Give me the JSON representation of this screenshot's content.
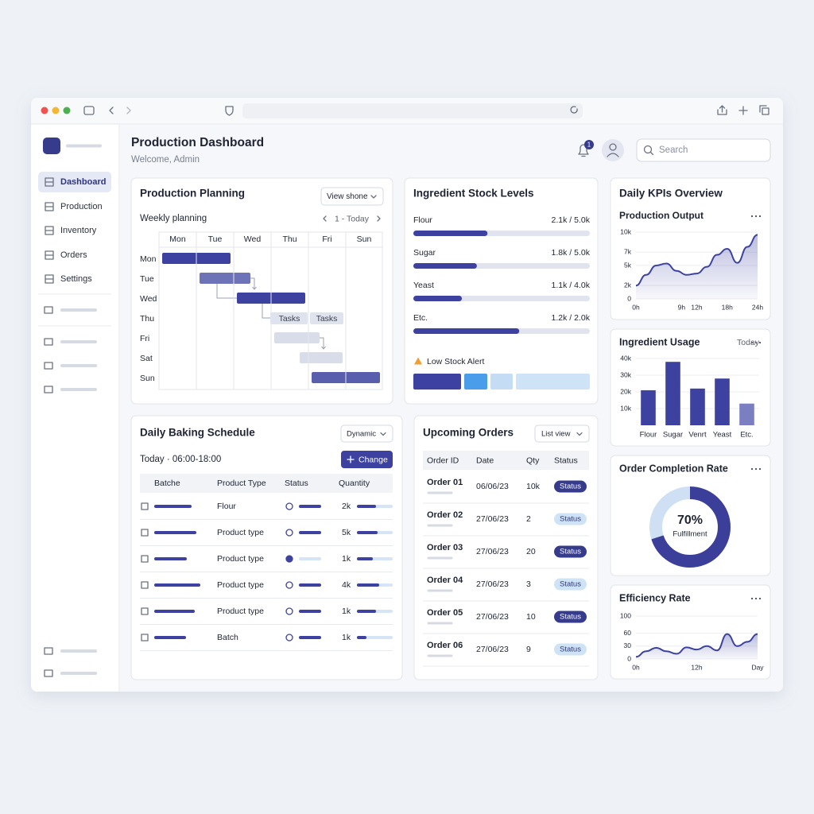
{
  "header": {
    "title": "Production Dashboard",
    "subtitle": "Welcome, Admin",
    "notifications": 1,
    "search": "Search"
  },
  "sidebar": {
    "nav": [
      "Dashboard",
      "Production",
      "Inventory",
      "Orders",
      "Settings"
    ]
  },
  "planning": {
    "title": "Production Planning",
    "view": "View shone",
    "subtitle": "Weekly planning",
    "range": "1 - Today",
    "columns": [
      "Mon",
      "Tue",
      "Wed",
      "Thu",
      "Fri",
      "Sun"
    ],
    "rows": [
      "Mon",
      "Tue",
      "Wed",
      "Thu",
      "Fri",
      "Sat",
      "Sun"
    ],
    "tasks": [
      "Tasks",
      "Tasks"
    ]
  },
  "stock": {
    "title": "Ingredient Stock Levels",
    "items": [
      {
        "name": "Flour",
        "label": "2.1k / 5.0k",
        "level": 2100,
        "capacity": 5000
      },
      {
        "name": "Sugar",
        "label": "1.8k / 5.0k",
        "level": 1800,
        "capacity": 5000
      },
      {
        "name": "Yeast",
        "label": "1.1k / 4.0k",
        "level": 1100,
        "capacity": 4000
      },
      {
        "name": "Etc.",
        "label": "1.2k / 2.0k",
        "level": 1200,
        "capacity": 2000
      }
    ],
    "alert": "Low Stock Alert"
  },
  "kpis": {
    "title": "Daily KPIs Overview"
  },
  "chart_data": [
    {
      "type": "line",
      "title": "Production Output",
      "color": "#3d42a0",
      "x": [
        0,
        2,
        4,
        6,
        8,
        10,
        12,
        14,
        16,
        18,
        20,
        22,
        24
      ],
      "values": [
        2000,
        3600,
        5000,
        5300,
        4200,
        3600,
        3800,
        4800,
        6600,
        7500,
        5400,
        7800,
        9600
      ],
      "xlim": [
        0,
        24
      ],
      "xticks": [
        {
          "value": 0,
          "label": "0h"
        },
        {
          "value": 9,
          "label": "9h"
        },
        {
          "value": 12,
          "label": "12h"
        },
        {
          "value": 18,
          "label": "18h"
        },
        {
          "value": 24,
          "label": "24h"
        }
      ],
      "ylim": [
        0,
        10000
      ],
      "yticks": [
        0,
        {
          "value": 2000,
          "label": "2k"
        },
        {
          "value": 5000,
          "label": "5k"
        },
        {
          "value": 7000,
          "label": "7k"
        },
        {
          "value": 10000,
          "label": "10k"
        }
      ],
      "grid": true
    },
    {
      "type": "bar",
      "title": "Ingredient Usage",
      "subtitle": "Today",
      "categories": [
        "Flour",
        "Sugar",
        "Venrt",
        "Yeast",
        "Etc."
      ],
      "values": [
        21000,
        38000,
        22000,
        28000,
        13000
      ],
      "colors": [
        "#3d42a0",
        "#3d42a0",
        "#3d42a0",
        "#3d42a0",
        "#7b7fc2"
      ],
      "ylim": [
        0,
        40000
      ],
      "yticks": [
        {
          "value": 10000,
          "label": "10k"
        },
        {
          "value": 20000,
          "label": "20k"
        },
        {
          "value": 30000,
          "label": "30k"
        },
        {
          "value": 40000,
          "label": "40k"
        }
      ],
      "grid": true
    },
    {
      "type": "donut",
      "title": "Order Completion Rate",
      "values": [
        70
      ],
      "value_labels": [
        "70%"
      ],
      "label": "Fulfillment",
      "color": "#3b3f9a",
      "track_color": "#cfe0f5",
      "max": 100
    },
    {
      "type": "line",
      "title": "Efficiency Rate",
      "color": "#3d42a0",
      "x": [
        0,
        2,
        4,
        6,
        8,
        10,
        12,
        14,
        16,
        18,
        20,
        22,
        24
      ],
      "values": [
        5,
        18,
        26,
        18,
        12,
        27,
        22,
        30,
        20,
        58,
        30,
        40,
        58
      ],
      "xlim": [
        0,
        24
      ],
      "xticks": [
        {
          "value": 0,
          "label": "0h"
        },
        {
          "value": 12,
          "label": "12h"
        },
        {
          "value": 24,
          "label": "Day"
        }
      ],
      "ylim": [
        0,
        100
      ],
      "yticks": [
        0,
        30,
        60,
        100
      ],
      "grid": true
    }
  ],
  "baking": {
    "title": "Daily Baking Schedule",
    "mode": "Dynamic",
    "window": "Today · 06:00-18:00",
    "action": "Change",
    "columns": [
      "Batche",
      "Product Type",
      "Status",
      "Quantity"
    ],
    "rows": [
      {
        "product": "Flour",
        "quantity": "2k"
      },
      {
        "product": "Product type",
        "quantity": "5k"
      },
      {
        "product": "Product type",
        "quantity": "1k"
      },
      {
        "product": "Product type",
        "quantity": "4k"
      },
      {
        "product": "Product type",
        "quantity": "1k"
      },
      {
        "product": "Batch",
        "quantity": "1k"
      }
    ]
  },
  "orders": {
    "title": "Upcoming Orders",
    "view": "List view",
    "columns": [
      "Order ID",
      "Date",
      "Qty",
      "Status"
    ],
    "rows": [
      {
        "id": "Order 01",
        "date": "06/06/23",
        "qty": "10k",
        "status": "Status",
        "style": "filled"
      },
      {
        "id": "Order 02",
        "date": "27/06/23",
        "qty": 2,
        "status": "Status",
        "style": "light"
      },
      {
        "id": "Order 03",
        "date": "27/06/23",
        "qty": 20,
        "status": "Status",
        "style": "filled"
      },
      {
        "id": "Order 04",
        "date": "27/06/23",
        "qty": 3,
        "status": "Status",
        "style": "light"
      },
      {
        "id": "Order 05",
        "date": "27/06/23",
        "qty": 10,
        "status": "Status",
        "style": "filled"
      },
      {
        "id": "Order 06",
        "date": "27/06/23",
        "qty": 9,
        "status": "Status",
        "style": "light"
      }
    ]
  }
}
